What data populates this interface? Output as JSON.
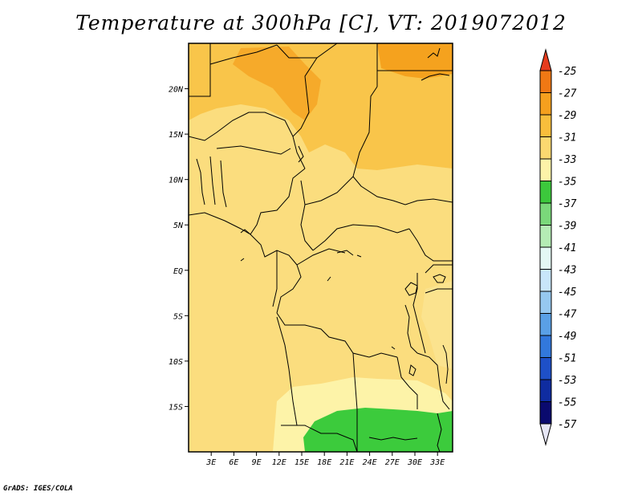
{
  "title": "Temperature at 300hPa [C], VT: 2019072012",
  "credit": "GrADS: IGES/COLA",
  "map": {
    "lon_range": [
      0,
      35
    ],
    "lat_range": [
      -20,
      25
    ],
    "lat_ticks": [
      {
        "value": 20,
        "label": "20N"
      },
      {
        "value": 15,
        "label": "15N"
      },
      {
        "value": 10,
        "label": "10N"
      },
      {
        "value": 5,
        "label": "5N"
      },
      {
        "value": 0,
        "label": "EQ"
      },
      {
        "value": -5,
        "label": "5S"
      },
      {
        "value": -10,
        "label": "10S"
      },
      {
        "value": -15,
        "label": "15S"
      }
    ],
    "lon_ticks": [
      {
        "value": 3,
        "label": "3E"
      },
      {
        "value": 6,
        "label": "6E"
      },
      {
        "value": 9,
        "label": "9E"
      },
      {
        "value": 12,
        "label": "12E"
      },
      {
        "value": 15,
        "label": "15E"
      },
      {
        "value": 18,
        "label": "18E"
      },
      {
        "value": 21,
        "label": "21E"
      },
      {
        "value": 24,
        "label": "24E"
      },
      {
        "value": 27,
        "label": "27E"
      },
      {
        "value": 30,
        "label": "30E"
      },
      {
        "value": 33,
        "label": "33E"
      }
    ]
  },
  "colorbar": {
    "labels": [
      "-25",
      "-27",
      "-29",
      "-31",
      "-33",
      "-35",
      "-37",
      "-39",
      "-41",
      "-43",
      "-45",
      "-47",
      "-49",
      "-51",
      "-53",
      "-55",
      "-57"
    ],
    "colors": [
      "#e63c1e",
      "#f07814",
      "#f5a01e",
      "#f8be3c",
      "#fbd870",
      "#fdf3a8",
      "#3cc83c",
      "#7ad87a",
      "#b4ecb4",
      "#e4f8f4",
      "#c8e6fa",
      "#96c8f0",
      "#5aa0e6",
      "#3278dc",
      "#1e50c8",
      "#0f2ca0",
      "#0a0a6e",
      "#e6e6f5"
    ]
  },
  "regions": [
    {
      "name": "background",
      "temp_band": "-31 to -33",
      "color": "#fbdd7e"
    },
    {
      "name": "north-band",
      "temp_band": "-29 to -31",
      "color": "#f9c54a"
    },
    {
      "name": "sahara-east",
      "temp_band": "-27 to -29",
      "color": "#f5a21e"
    },
    {
      "name": "central-cool-patch",
      "temp_band": "-33 to -35",
      "color": "#fbe38e"
    },
    {
      "name": "southern-band",
      "temp_band": "-35 to -37",
      "color": "#fdf3a8"
    },
    {
      "name": "southern-green",
      "temp_band": "below -37",
      "color": "#3ccb3c"
    }
  ]
}
